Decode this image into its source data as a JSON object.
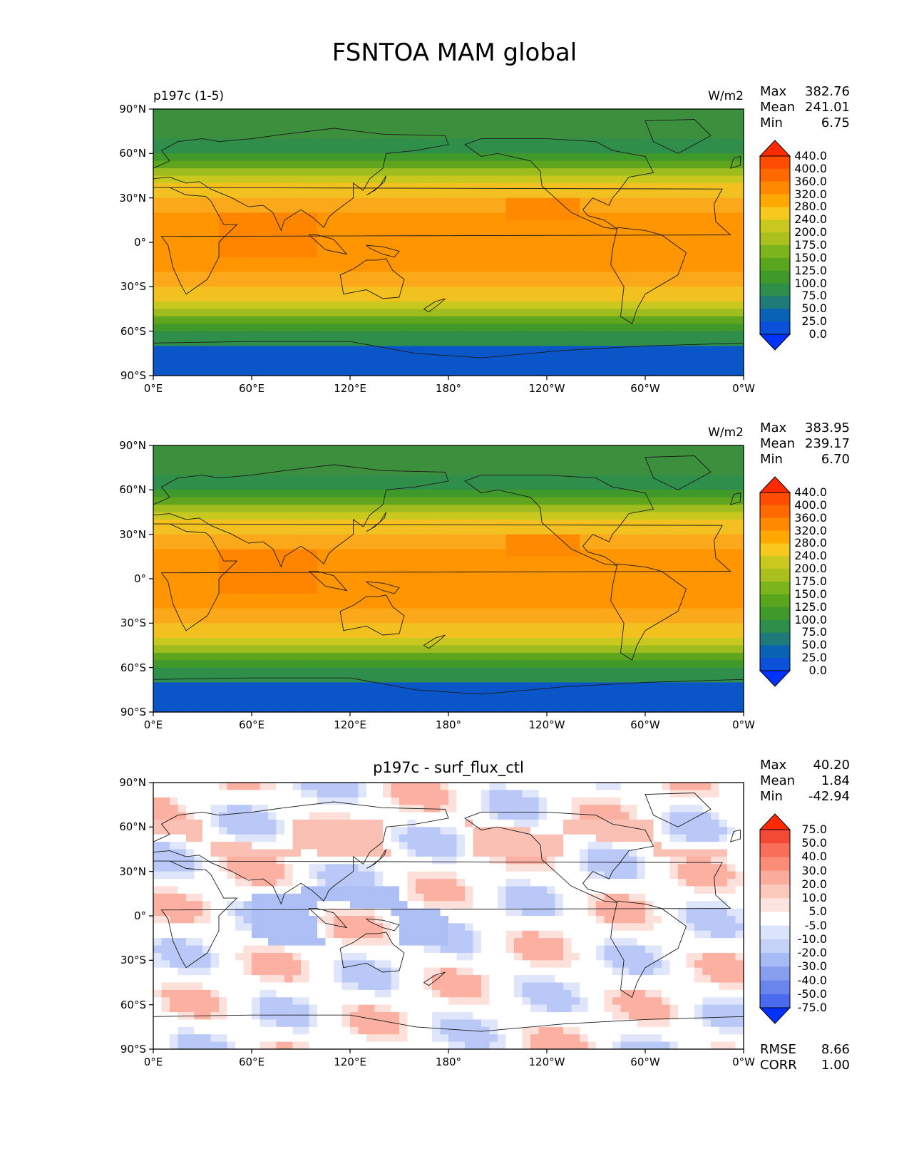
{
  "title": "FSNTOA MAM global",
  "axes": {
    "lat_ticks": [
      "90°N",
      "60°N",
      "30°N",
      "0°",
      "30°S",
      "60°S",
      "90°S"
    ],
    "lon_ticks": [
      "0°E",
      "60°E",
      "120°E",
      "180°",
      "120°W",
      "60°W",
      "0°W"
    ]
  },
  "panels": [
    {
      "left_title": "p197c (1-5)",
      "center_title": "",
      "units": "W/m2",
      "stats": {
        "Max": "382.76",
        "Mean": "241.01",
        "Min": "6.75"
      },
      "colorbar": {
        "levels": [
          "440.0",
          "400.0",
          "360.0",
          "320.0",
          "280.0",
          "240.0",
          "200.0",
          "175.0",
          "150.0",
          "125.0",
          "100.0",
          "75.0",
          "50.0",
          "25.0",
          "0.0"
        ],
        "colors": [
          "#ff2a00",
          "#ff4d00",
          "#ff6a00",
          "#ff8a00",
          "#ffa800",
          "#f7c81e",
          "#c9c81e",
          "#a9c01e",
          "#7ab51e",
          "#5aa51e",
          "#3f9a2a",
          "#2f8e4a",
          "#1f7a7a",
          "#0a62b4",
          "#0a50d8",
          "#0032ff"
        ]
      }
    },
    {
      "left_title": "",
      "center_title": "",
      "units": "W/m2",
      "stats": {
        "Max": "383.95",
        "Mean": "239.17",
        "Min": "6.70"
      },
      "colorbar": {
        "levels": [
          "440.0",
          "400.0",
          "360.0",
          "320.0",
          "280.0",
          "240.0",
          "200.0",
          "175.0",
          "150.0",
          "125.0",
          "100.0",
          "75.0",
          "50.0",
          "25.0",
          "0.0"
        ],
        "colors": [
          "#ff2a00",
          "#ff4d00",
          "#ff6a00",
          "#ff8a00",
          "#ffa800",
          "#f7c81e",
          "#c9c81e",
          "#a9c01e",
          "#7ab51e",
          "#5aa51e",
          "#3f9a2a",
          "#2f8e4a",
          "#1f7a7a",
          "#0a62b4",
          "#0a50d8",
          "#0032ff"
        ]
      }
    },
    {
      "left_title": "",
      "center_title": "p197c - surf_flux_ctl",
      "units": "",
      "stats": {
        "Max": "40.20",
        "Mean": "1.84",
        "Min": "-42.94"
      },
      "extra_stats": {
        "RMSE": "8.66",
        "CORR": "1.00"
      },
      "colorbar": {
        "levels": [
          "75.0",
          "50.0",
          "40.0",
          "30.0",
          "20.0",
          "10.0",
          "5.0",
          "-5.0",
          "-10.0",
          "-20.0",
          "-30.0",
          "-40.0",
          "-50.0",
          "-75.0"
        ],
        "colors": [
          "#ff2a00",
          "#f24a35",
          "#f86e58",
          "#fb8c78",
          "#fbab9c",
          "#fbc8bc",
          "#fde4de",
          "#ffffff",
          "#dce4fb",
          "#c4d2f8",
          "#a6bbf5",
          "#889ff0",
          "#6a86ec",
          "#4a6bf0",
          "#0032ff"
        ]
      }
    }
  ]
}
